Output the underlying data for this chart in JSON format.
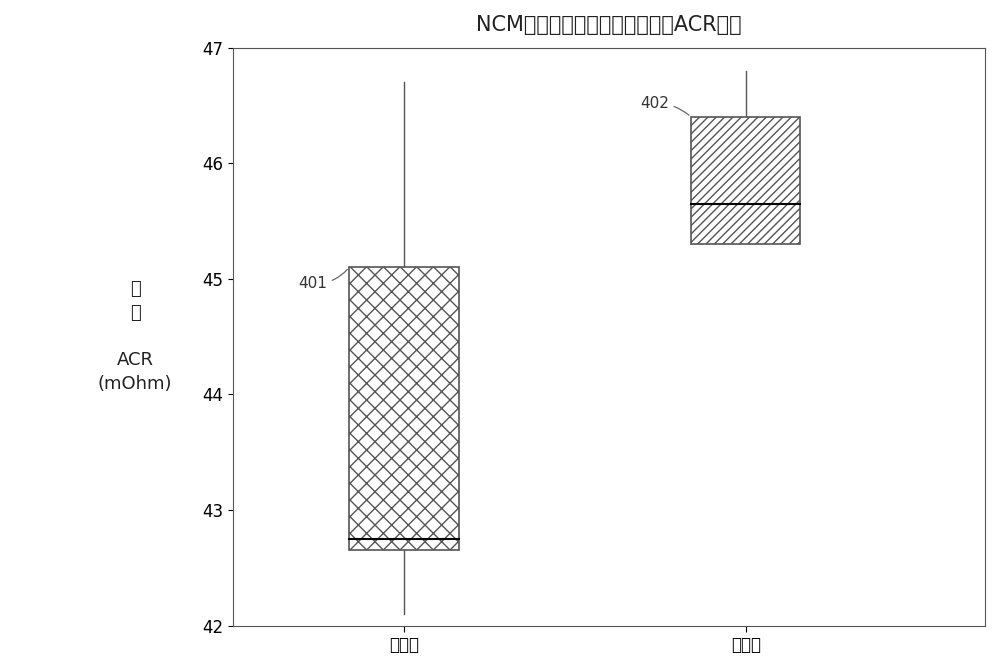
{
  "title": "NCM阴极、石墨阳极、小型电池ACR阻抗",
  "ylim": [
    42,
    47
  ],
  "yticks": [
    42,
    43,
    44,
    45,
    46,
    47
  ],
  "categories": [
    "实验组",
    "对照组"
  ],
  "box1": {
    "whisker_low": 42.1,
    "q1": 42.65,
    "median": 42.75,
    "q3": 45.1,
    "whisker_high": 46.7,
    "label": "401",
    "hatch": "xx",
    "x": 1.0
  },
  "box2": {
    "whisker_low": 45.3,
    "q1": 45.3,
    "median": 45.65,
    "q3": 46.4,
    "whisker_high": 46.8,
    "label": "402",
    "hatch": "////",
    "x": 2.0
  },
  "background_color": "#ffffff",
  "box_facecolor": "#ffffff",
  "box_edgecolor": "#555555",
  "whisker_color": "#555555",
  "median_color": "#000000",
  "box_width": 0.32,
  "annotation_fontsize": 11,
  "title_fontsize": 15,
  "tick_fontsize": 12,
  "ylabel_fontsize": 13,
  "xlim": [
    0.5,
    2.7
  ]
}
